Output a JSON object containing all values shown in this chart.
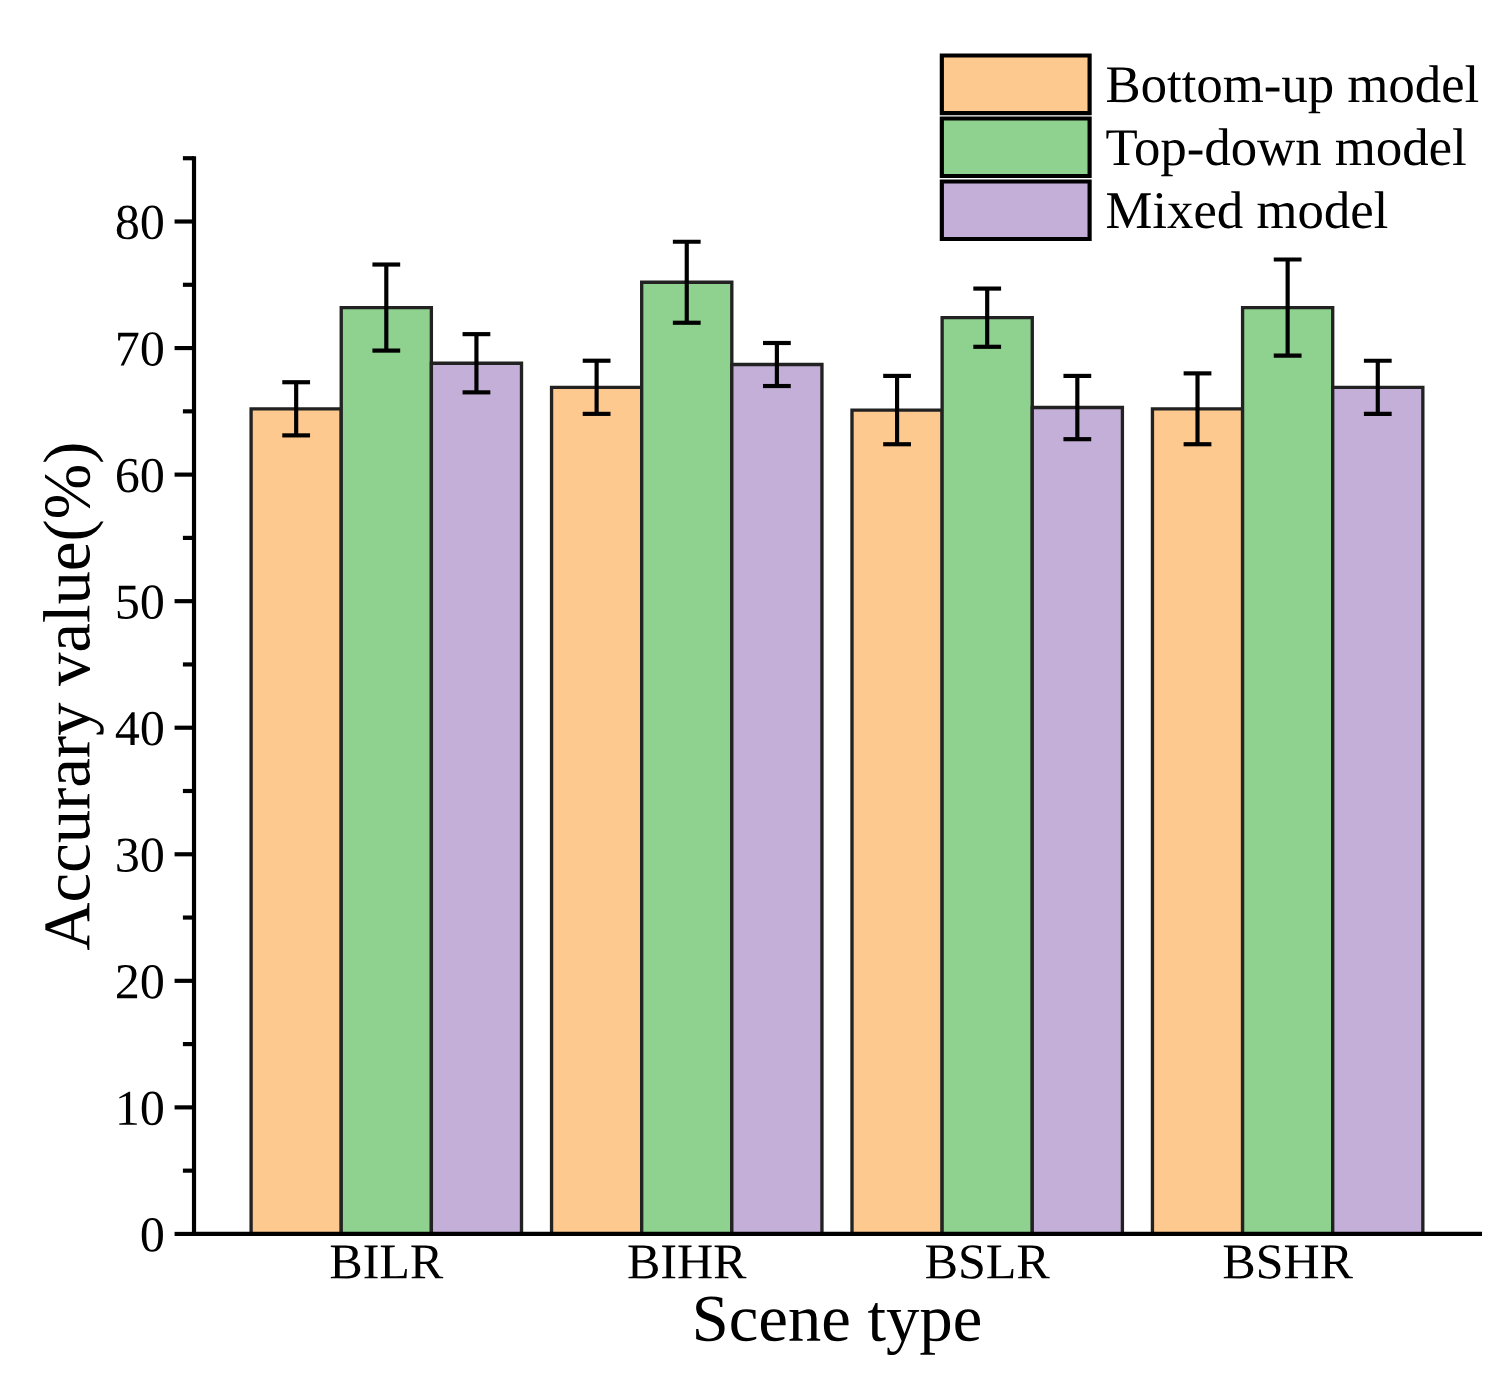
{
  "chart_data": {
    "type": "bar",
    "xlabel": "Scene type",
    "ylabel": "Accurary value(%)",
    "categories": [
      "BILR",
      "BIHR",
      "BSLR",
      "BSHR"
    ],
    "series": [
      {
        "name": "Bottom-up model",
        "color": "#fdc98f",
        "values": [
          65.2,
          66.9,
          65.1,
          65.2
        ],
        "errors": [
          2.1,
          2.1,
          2.7,
          2.8
        ]
      },
      {
        "name": "Top-down model",
        "color": "#8fd18f",
        "values": [
          73.2,
          75.2,
          72.4,
          73.2
        ],
        "errors": [
          3.4,
          3.2,
          2.3,
          3.8
        ]
      },
      {
        "name": "Mixed model",
        "color": "#c4afd8",
        "values": [
          68.8,
          68.7,
          65.3,
          66.9
        ],
        "errors": [
          2.3,
          1.7,
          2.5,
          2.1
        ]
      }
    ],
    "ylim": [
      0,
      85
    ],
    "yticks": [
      0,
      10,
      20,
      30,
      40,
      50,
      60,
      70,
      80
    ],
    "grid": false,
    "legend": "top right"
  }
}
